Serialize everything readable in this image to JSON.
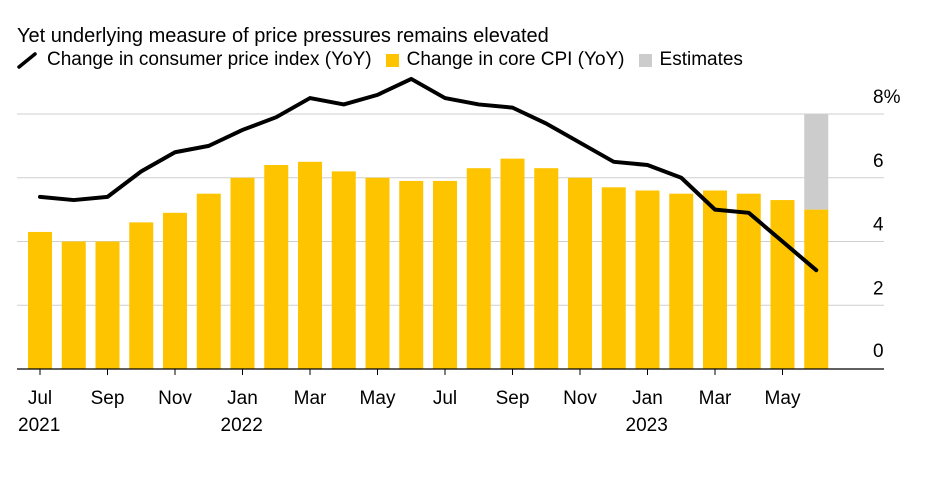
{
  "chart_data": {
    "type": "bar+line",
    "title": "Yet underlying measure of price pressures remains elevated",
    "legend": [
      {
        "label": "Change in consumer price index (YoY)",
        "color": "#000000",
        "kind": "line"
      },
      {
        "label": "Change in core CPI (YoY)",
        "color": "#FFC400",
        "kind": "bar"
      },
      {
        "label": "Estimates",
        "color": "#CCCCCC",
        "kind": "bar"
      }
    ],
    "months": [
      "2021-07",
      "2021-08",
      "2021-09",
      "2021-10",
      "2021-11",
      "2021-12",
      "2022-01",
      "2022-02",
      "2022-03",
      "2022-04",
      "2022-05",
      "2022-06",
      "2022-07",
      "2022-08",
      "2022-09",
      "2022-10",
      "2022-11",
      "2022-12",
      "2023-01",
      "2023-02",
      "2023-03",
      "2023-04",
      "2023-05",
      "2023-06"
    ],
    "x_tick_labels": [
      {
        "index": 0,
        "label": "Jul",
        "year": "2021"
      },
      {
        "index": 2,
        "label": "Sep",
        "year": ""
      },
      {
        "index": 4,
        "label": "Nov",
        "year": ""
      },
      {
        "index": 6,
        "label": "Jan",
        "year": "2022"
      },
      {
        "index": 8,
        "label": "Mar",
        "year": ""
      },
      {
        "index": 10,
        "label": "May",
        "year": ""
      },
      {
        "index": 12,
        "label": "Jul",
        "year": ""
      },
      {
        "index": 14,
        "label": "Sep",
        "year": ""
      },
      {
        "index": 16,
        "label": "Nov",
        "year": ""
      },
      {
        "index": 18,
        "label": "Jan",
        "year": "2023"
      },
      {
        "index": 20,
        "label": "Mar",
        "year": ""
      },
      {
        "index": 22,
        "label": "May",
        "year": ""
      }
    ],
    "series": [
      {
        "name": "Change in core CPI (YoY)",
        "type": "bar",
        "values": [
          4.3,
          4.0,
          4.0,
          4.6,
          4.9,
          5.5,
          6.0,
          6.4,
          6.5,
          6.2,
          6.0,
          5.9,
          5.9,
          6.3,
          6.6,
          6.3,
          6.0,
          5.7,
          5.6,
          5.5,
          5.6,
          5.5,
          5.3,
          5.0
        ]
      },
      {
        "name": "Change in consumer price index (YoY)",
        "type": "line",
        "values": [
          5.4,
          5.3,
          5.4,
          6.2,
          6.8,
          7.0,
          7.5,
          7.9,
          8.5,
          8.3,
          8.6,
          9.1,
          8.5,
          8.3,
          8.2,
          7.7,
          7.1,
          6.5,
          6.4,
          6.0,
          5.0,
          4.9,
          4.0,
          3.1
        ]
      },
      {
        "name": "Estimates",
        "type": "range",
        "index": 23,
        "low": 5.0,
        "high": 8.0
      }
    ],
    "y_ticks": [
      {
        "value": 0,
        "label": "0"
      },
      {
        "value": 2,
        "label": "2"
      },
      {
        "value": 4,
        "label": "4"
      },
      {
        "value": 6,
        "label": "6"
      },
      {
        "value": 8,
        "label": "8%"
      }
    ],
    "ylim": [
      0,
      8
    ],
    "grid": true
  }
}
